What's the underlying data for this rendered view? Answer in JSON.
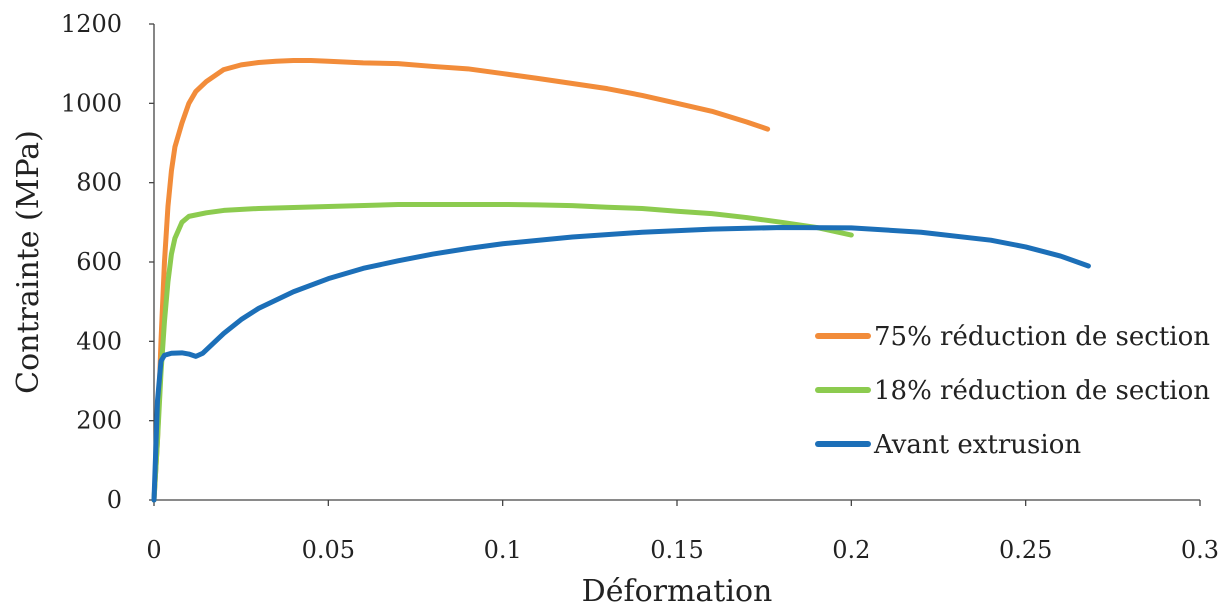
{
  "chart_data": {
    "type": "line",
    "xlabel": "Déformation",
    "ylabel": "Contrainte (MPa)",
    "xlim": [
      0,
      0.3
    ],
    "ylim": [
      0,
      1200
    ],
    "x_ticks": [
      "0",
      "0.05",
      "0.1",
      "0.15",
      "0.2",
      "0.25",
      "0.3"
    ],
    "y_ticks": [
      "0",
      "200",
      "400",
      "600",
      "800",
      "1000",
      "1200"
    ],
    "grid": false,
    "legend_position": "bottom-right",
    "series": [
      {
        "name": "75% réduction de section",
        "color": "#F28C3A",
        "points": [
          [
            0,
            0
          ],
          [
            0.001,
            150
          ],
          [
            0.002,
            400
          ],
          [
            0.003,
            600
          ],
          [
            0.004,
            740
          ],
          [
            0.005,
            830
          ],
          [
            0.006,
            890
          ],
          [
            0.008,
            950
          ],
          [
            0.01,
            1000
          ],
          [
            0.012,
            1030
          ],
          [
            0.015,
            1055
          ],
          [
            0.02,
            1085
          ],
          [
            0.025,
            1097
          ],
          [
            0.03,
            1103
          ],
          [
            0.035,
            1106
          ],
          [
            0.04,
            1108
          ],
          [
            0.045,
            1108
          ],
          [
            0.05,
            1106
          ],
          [
            0.06,
            1102
          ],
          [
            0.07,
            1100
          ],
          [
            0.08,
            1093
          ],
          [
            0.09,
            1087
          ],
          [
            0.1,
            1075
          ],
          [
            0.11,
            1063
          ],
          [
            0.12,
            1050
          ],
          [
            0.13,
            1037
          ],
          [
            0.14,
            1020
          ],
          [
            0.15,
            1000
          ],
          [
            0.16,
            980
          ],
          [
            0.17,
            953
          ],
          [
            0.176,
            935
          ]
        ]
      },
      {
        "name": "18% réduction de section",
        "color": "#8CCB4F",
        "points": [
          [
            0,
            0
          ],
          [
            0.001,
            150
          ],
          [
            0.002,
            320
          ],
          [
            0.003,
            450
          ],
          [
            0.004,
            550
          ],
          [
            0.005,
            620
          ],
          [
            0.006,
            660
          ],
          [
            0.008,
            700
          ],
          [
            0.01,
            715
          ],
          [
            0.015,
            724
          ],
          [
            0.02,
            730
          ],
          [
            0.03,
            735
          ],
          [
            0.05,
            740
          ],
          [
            0.07,
            745
          ],
          [
            0.09,
            745
          ],
          [
            0.1,
            745
          ],
          [
            0.11,
            744
          ],
          [
            0.12,
            742
          ],
          [
            0.13,
            738
          ],
          [
            0.14,
            735
          ],
          [
            0.15,
            728
          ],
          [
            0.16,
            722
          ],
          [
            0.17,
            712
          ],
          [
            0.18,
            700
          ],
          [
            0.19,
            687
          ],
          [
            0.2,
            668
          ]
        ]
      },
      {
        "name": "Avant extrusion",
        "color": "#1C6FB8",
        "points": [
          [
            0,
            0
          ],
          [
            0.001,
            250
          ],
          [
            0.002,
            350
          ],
          [
            0.003,
            365
          ],
          [
            0.005,
            370
          ],
          [
            0.008,
            371
          ],
          [
            0.01,
            368
          ],
          [
            0.012,
            362
          ],
          [
            0.014,
            370
          ],
          [
            0.017,
            395
          ],
          [
            0.02,
            420
          ],
          [
            0.025,
            455
          ],
          [
            0.03,
            483
          ],
          [
            0.04,
            525
          ],
          [
            0.05,
            558
          ],
          [
            0.06,
            584
          ],
          [
            0.07,
            603
          ],
          [
            0.08,
            620
          ],
          [
            0.09,
            634
          ],
          [
            0.1,
            646
          ],
          [
            0.12,
            663
          ],
          [
            0.14,
            675
          ],
          [
            0.16,
            683
          ],
          [
            0.18,
            687
          ],
          [
            0.2,
            686
          ],
          [
            0.22,
            675
          ],
          [
            0.24,
            655
          ],
          [
            0.25,
            638
          ],
          [
            0.26,
            615
          ],
          [
            0.268,
            590
          ]
        ]
      }
    ]
  }
}
